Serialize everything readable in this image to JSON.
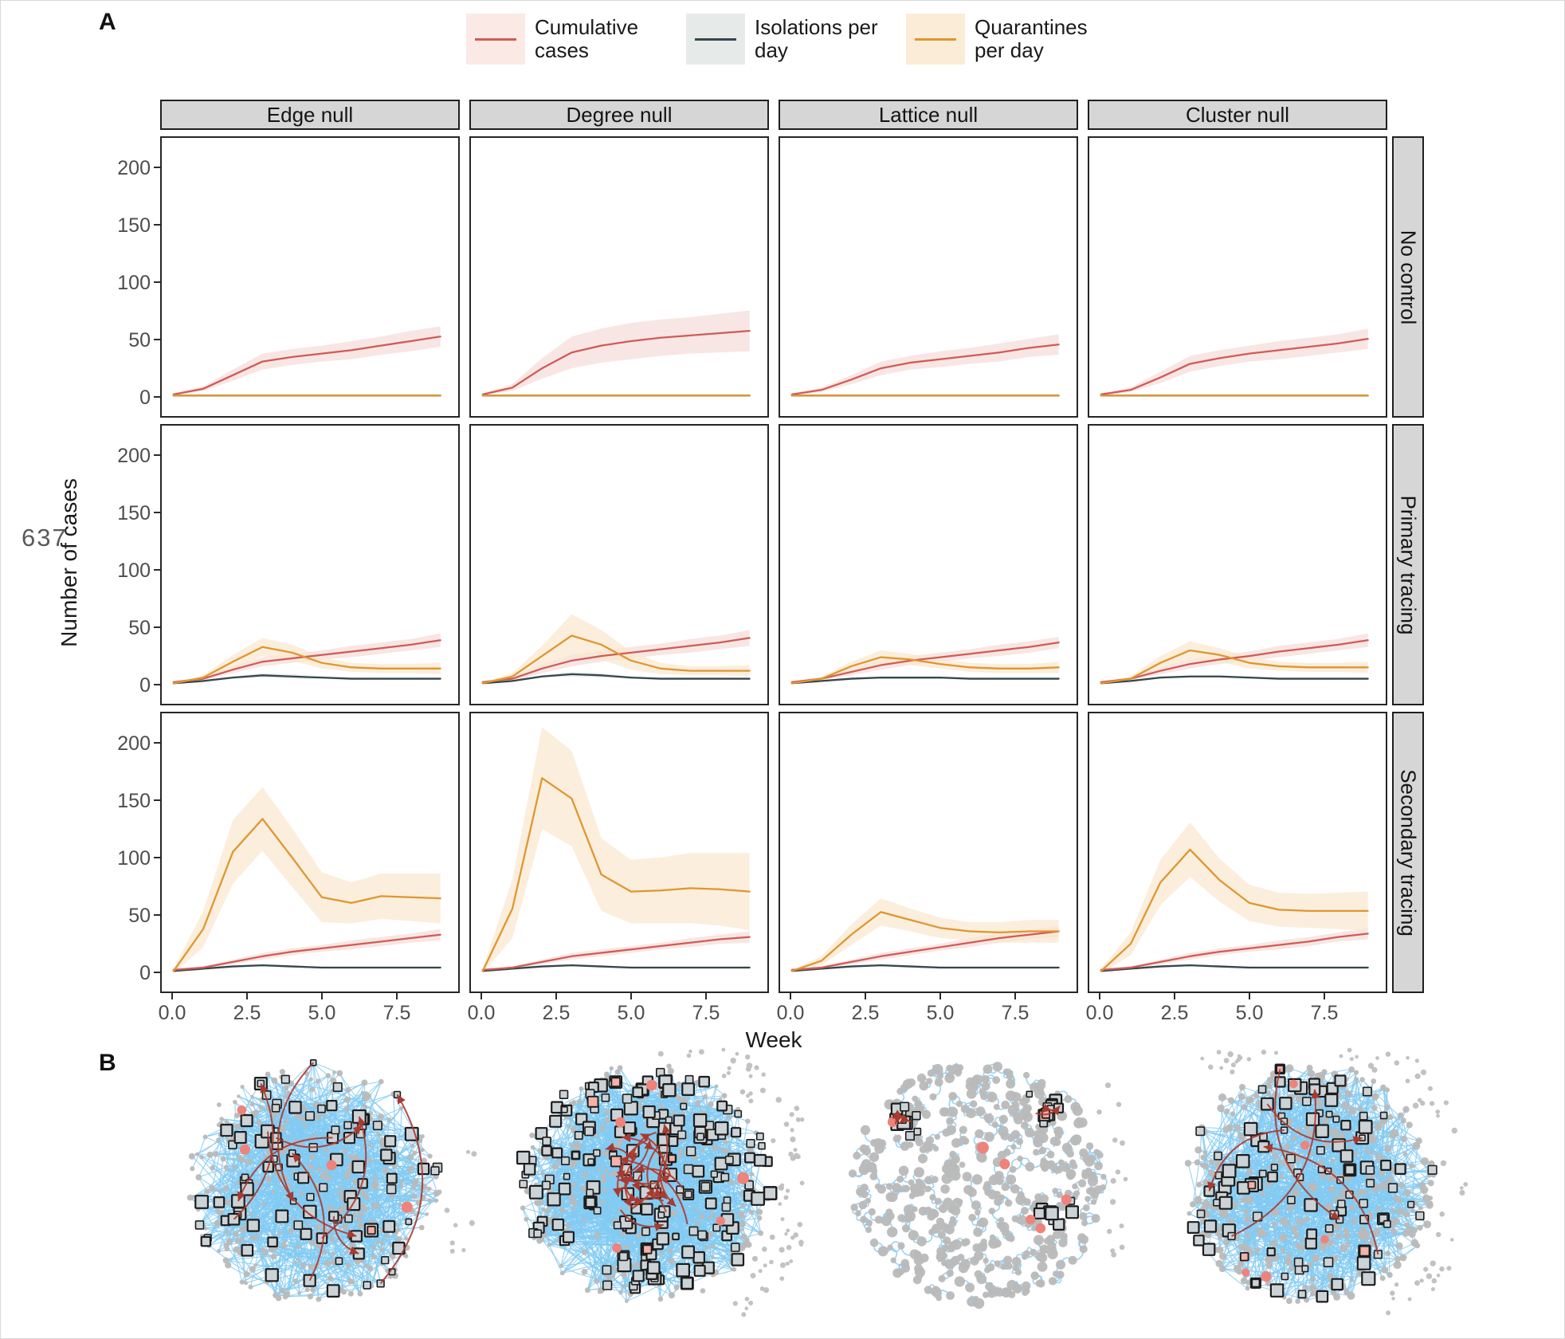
{
  "labels": {
    "panel_a": "A",
    "panel_b": "B",
    "line_number": "637"
  },
  "legend": {
    "items": [
      {
        "name": "cumulative-cases",
        "label": "Cumulative cases",
        "line_color": "#d15b55",
        "swatch_bg": "#fbe9e6"
      },
      {
        "name": "isolations-per-day",
        "label": "Isolations per day",
        "line_color": "#37474a",
        "swatch_bg": "#e6ebea"
      },
      {
        "name": "quarantines-per-day",
        "label": "Quarantines per day",
        "line_color": "#e0962f",
        "swatch_bg": "#fbecd7"
      }
    ]
  },
  "facets": {
    "columns": [
      "Edge null",
      "Degree null",
      "Lattice null",
      "Cluster null"
    ],
    "rows": [
      "No control",
      "Primary tracing",
      "Secondary tracing"
    ],
    "strip_bg": "#d6d6d6"
  },
  "axes": {
    "y_label": "Number of cases",
    "x_label": "Week",
    "y_ticks": [
      0,
      50,
      100,
      150,
      200
    ],
    "x_tick_values": [
      0,
      2.5,
      5,
      7.5
    ],
    "x_tick_labels": [
      "0.0",
      "2.5",
      "5.0",
      "7.5"
    ]
  },
  "chart_data": {
    "type": "line",
    "x_weeks": [
      0,
      1,
      2,
      3,
      4,
      5,
      6,
      7,
      8,
      9
    ],
    "ylim": [
      0,
      230
    ],
    "series_colors": {
      "cumulative": "#d15b55",
      "isolations": "#37474a",
      "quarantines": "#e0962f"
    },
    "ribbon_colors": {
      "cumulative": "#f5dcd9",
      "isolations": "#e2e8e8",
      "quarantines": "#fae7cf"
    },
    "panels": [
      {
        "row": "No control",
        "col": "Edge null",
        "cumulative": {
          "y": [
            1,
            6,
            18,
            30,
            34,
            37,
            40,
            44,
            48,
            52
          ],
          "band": [
            1,
            2,
            5,
            7,
            7,
            7,
            8,
            8,
            9,
            9
          ]
        },
        "isolations": {
          "y": [
            0,
            0,
            0,
            0,
            0,
            0,
            0,
            0,
            0,
            0
          ],
          "band": [
            0,
            0,
            0,
            0,
            0,
            0,
            0,
            0,
            0,
            0
          ]
        },
        "quarantines": {
          "y": [
            0,
            0,
            0,
            0,
            0,
            0,
            0,
            0,
            0,
            0
          ],
          "band": [
            1,
            1,
            1,
            1,
            1,
            1,
            1,
            1,
            1,
            1
          ]
        }
      },
      {
        "row": "No control",
        "col": "Degree null",
        "cumulative": {
          "y": [
            1,
            7,
            24,
            38,
            44,
            48,
            51,
            53,
            55,
            57
          ],
          "band": [
            1,
            3,
            9,
            14,
            15,
            16,
            16,
            16,
            17,
            18
          ]
        },
        "isolations": {
          "y": [
            0,
            0,
            0,
            0,
            0,
            0,
            0,
            0,
            0,
            0
          ],
          "band": [
            0,
            0,
            0,
            0,
            0,
            0,
            0,
            0,
            0,
            0
          ]
        },
        "quarantines": {
          "y": [
            0,
            0,
            0,
            0,
            0,
            0,
            0,
            0,
            0,
            0
          ],
          "band": [
            1,
            1,
            1,
            1,
            1,
            1,
            1,
            1,
            1,
            1
          ]
        }
      },
      {
        "row": "No control",
        "col": "Lattice null",
        "cumulative": {
          "y": [
            1,
            5,
            14,
            24,
            29,
            32,
            35,
            38,
            42,
            45
          ],
          "band": [
            1,
            2,
            4,
            6,
            6,
            7,
            7,
            8,
            8,
            9
          ]
        },
        "isolations": {
          "y": [
            0,
            0,
            0,
            0,
            0,
            0,
            0,
            0,
            0,
            0
          ],
          "band": [
            0,
            0,
            0,
            0,
            0,
            0,
            0,
            0,
            0,
            0
          ]
        },
        "quarantines": {
          "y": [
            0,
            0,
            0,
            0,
            0,
            0,
            0,
            0,
            0,
            0
          ],
          "band": [
            1,
            1,
            1,
            1,
            1,
            1,
            1,
            1,
            1,
            1
          ]
        }
      },
      {
        "row": "No control",
        "col": "Cluster null",
        "cumulative": {
          "y": [
            1,
            5,
            16,
            28,
            33,
            37,
            40,
            43,
            46,
            50
          ],
          "band": [
            1,
            2,
            5,
            7,
            7,
            7,
            8,
            8,
            8,
            9
          ]
        },
        "isolations": {
          "y": [
            0,
            0,
            0,
            0,
            0,
            0,
            0,
            0,
            0,
            0
          ],
          "band": [
            0,
            0,
            0,
            0,
            0,
            0,
            0,
            0,
            0,
            0
          ]
        },
        "quarantines": {
          "y": [
            0,
            0,
            0,
            0,
            0,
            0,
            0,
            0,
            0,
            0
          ],
          "band": [
            1,
            1,
            1,
            1,
            1,
            1,
            1,
            1,
            1,
            1
          ]
        }
      },
      {
        "row": "Primary tracing",
        "col": "Edge null",
        "cumulative": {
          "y": [
            1,
            4,
            12,
            19,
            22,
            25,
            28,
            31,
            34,
            38
          ],
          "band": [
            1,
            1,
            3,
            4,
            4,
            4,
            5,
            5,
            5,
            6
          ]
        },
        "isolations": {
          "y": [
            0,
            2,
            5,
            7,
            6,
            5,
            4,
            4,
            4,
            4
          ],
          "band": [
            0,
            1,
            1,
            2,
            2,
            1,
            1,
            1,
            1,
            1
          ]
        },
        "quarantines": {
          "y": [
            0,
            5,
            19,
            32,
            27,
            18,
            14,
            13,
            13,
            13
          ],
          "band": [
            1,
            2,
            6,
            8,
            7,
            5,
            4,
            4,
            4,
            5
          ]
        }
      },
      {
        "row": "Primary tracing",
        "col": "Degree null",
        "cumulative": {
          "y": [
            1,
            4,
            13,
            20,
            24,
            27,
            30,
            33,
            36,
            40
          ],
          "band": [
            1,
            2,
            4,
            5,
            5,
            5,
            5,
            6,
            6,
            7
          ]
        },
        "isolations": {
          "y": [
            0,
            2,
            6,
            8,
            7,
            5,
            4,
            4,
            4,
            4
          ],
          "band": [
            0,
            1,
            1,
            2,
            2,
            1,
            1,
            1,
            1,
            1
          ]
        },
        "quarantines": {
          "y": [
            0,
            6,
            24,
            42,
            34,
            20,
            13,
            11,
            11,
            11
          ],
          "band": [
            1,
            3,
            9,
            19,
            13,
            8,
            5,
            4,
            4,
            5
          ]
        }
      },
      {
        "row": "Primary tracing",
        "col": "Lattice null",
        "cumulative": {
          "y": [
            1,
            4,
            10,
            16,
            20,
            23,
            26,
            29,
            32,
            36
          ],
          "band": [
            1,
            1,
            3,
            4,
            4,
            4,
            4,
            5,
            5,
            5
          ]
        },
        "isolations": {
          "y": [
            0,
            2,
            4,
            5,
            5,
            5,
            4,
            4,
            4,
            4
          ],
          "band": [
            0,
            1,
            1,
            1,
            1,
            1,
            1,
            1,
            1,
            1
          ]
        },
        "quarantines": {
          "y": [
            0,
            4,
            15,
            23,
            21,
            17,
            14,
            13,
            13,
            14
          ],
          "band": [
            1,
            2,
            4,
            6,
            5,
            4,
            4,
            4,
            4,
            5
          ]
        }
      },
      {
        "row": "Primary tracing",
        "col": "Cluster null",
        "cumulative": {
          "y": [
            1,
            4,
            11,
            17,
            21,
            24,
            28,
            31,
            34,
            38
          ],
          "band": [
            1,
            1,
            3,
            4,
            4,
            4,
            5,
            5,
            5,
            6
          ]
        },
        "isolations": {
          "y": [
            0,
            2,
            5,
            6,
            6,
            5,
            4,
            4,
            4,
            4
          ],
          "band": [
            0,
            1,
            1,
            1,
            1,
            1,
            1,
            1,
            1,
            1
          ]
        },
        "quarantines": {
          "y": [
            0,
            4,
            18,
            29,
            25,
            18,
            15,
            14,
            14,
            14
          ],
          "band": [
            1,
            2,
            6,
            8,
            6,
            5,
            4,
            4,
            4,
            5
          ]
        }
      },
      {
        "row": "Secondary tracing",
        "col": "Edge null",
        "cumulative": {
          "y": [
            1,
            3,
            8,
            13,
            17,
            20,
            23,
            26,
            29,
            32
          ],
          "band": [
            1,
            1,
            2,
            3,
            3,
            3,
            4,
            4,
            4,
            5
          ]
        },
        "isolations": {
          "y": [
            0,
            2,
            4,
            5,
            4,
            3,
            3,
            3,
            3,
            3
          ],
          "band": [
            0,
            1,
            1,
            1,
            1,
            1,
            1,
            1,
            1,
            1
          ]
        },
        "quarantines": {
          "y": [
            0,
            37,
            105,
            134,
            100,
            65,
            60,
            66,
            65,
            64
          ],
          "band": [
            2,
            16,
            28,
            28,
            26,
            22,
            18,
            20,
            21,
            22
          ]
        }
      },
      {
        "row": "Secondary tracing",
        "col": "Degree null",
        "cumulative": {
          "y": [
            1,
            3,
            8,
            13,
            16,
            19,
            22,
            25,
            28,
            30
          ],
          "band": [
            1,
            1,
            2,
            3,
            3,
            3,
            3,
            4,
            4,
            5
          ]
        },
        "isolations": {
          "y": [
            0,
            2,
            4,
            5,
            4,
            3,
            3,
            3,
            3,
            3
          ],
          "band": [
            0,
            1,
            1,
            1,
            1,
            1,
            1,
            1,
            1,
            1
          ]
        },
        "quarantines": {
          "y": [
            0,
            55,
            170,
            152,
            85,
            70,
            71,
            73,
            72,
            70
          ],
          "band": [
            2,
            26,
            45,
            42,
            32,
            28,
            29,
            31,
            32,
            34
          ]
        }
      },
      {
        "row": "Secondary tracing",
        "col": "Lattice null",
        "cumulative": {
          "y": [
            1,
            3,
            8,
            13,
            17,
            21,
            25,
            29,
            32,
            35
          ],
          "band": [
            1,
            1,
            2,
            3,
            3,
            3,
            4,
            4,
            4,
            5
          ]
        },
        "isolations": {
          "y": [
            0,
            2,
            4,
            5,
            4,
            3,
            3,
            3,
            3,
            3
          ],
          "band": [
            0,
            1,
            1,
            1,
            1,
            1,
            1,
            1,
            1,
            1
          ]
        },
        "quarantines": {
          "y": [
            0,
            9,
            32,
            52,
            45,
            38,
            35,
            34,
            35,
            35
          ],
          "band": [
            1,
            4,
            9,
            12,
            10,
            9,
            8,
            9,
            10,
            10
          ]
        }
      },
      {
        "row": "Secondary tracing",
        "col": "Cluster null",
        "cumulative": {
          "y": [
            1,
            3,
            8,
            13,
            17,
            20,
            23,
            26,
            30,
            33
          ],
          "band": [
            1,
            1,
            2,
            3,
            3,
            3,
            4,
            4,
            4,
            5
          ]
        },
        "isolations": {
          "y": [
            0,
            2,
            4,
            5,
            4,
            3,
            3,
            3,
            3,
            3
          ],
          "band": [
            0,
            1,
            1,
            1,
            1,
            1,
            1,
            1,
            1,
            1
          ]
        },
        "quarantines": {
          "y": [
            0,
            24,
            78,
            107,
            80,
            60,
            54,
            53,
            53,
            53
          ],
          "band": [
            2,
            10,
            20,
            24,
            19,
            16,
            15,
            15,
            16,
            17
          ]
        }
      }
    ]
  },
  "networks": {
    "colors": {
      "node": "#b9b9b9",
      "edge": "#82cbf2",
      "square_fill": "#ccd3d6",
      "square_stroke": "#1c1c1c",
      "infected_dot": "#ee837c",
      "infected_square": "#f3b2aa",
      "arrow": "#a83a30",
      "halo_dot": "#c2c2c2"
    },
    "items": [
      {
        "name": "edge-null-network",
        "seed": 11,
        "nodes": 500,
        "node_radius": 3.2,
        "edge_count": 950,
        "edge_style": "random",
        "squares": 105,
        "square_mode": "spread",
        "red_dots": 4,
        "red_squares": 1,
        "arrows": 9,
        "arrow_reach": "long",
        "halo": {
          "count": 8,
          "from": -20,
          "to": 30
        }
      },
      {
        "name": "degree-null-network",
        "seed": 22,
        "nodes": 520,
        "node_radius": 3.2,
        "edge_count": 1250,
        "edge_style": "random",
        "squares": 215,
        "square_mode": "spread",
        "red_dots": 5,
        "red_squares": 6,
        "arrows": 22,
        "arrow_reach": "medium",
        "halo": {
          "count": 70,
          "from": -100,
          "to": 60
        }
      },
      {
        "name": "lattice-null-network",
        "seed": 33,
        "nodes": 480,
        "node_radius": 5.2,
        "edge_count": 620,
        "edge_style": "local",
        "squares": 34,
        "square_mode": "two-clusters",
        "red_dots": 6,
        "red_squares": 2,
        "arrows": 5,
        "arrow_reach": "short",
        "halo": {
          "count": 14,
          "from": -40,
          "to": 30
        }
      },
      {
        "name": "cluster-null-network",
        "seed": 44,
        "nodes": 500,
        "node_radius": 4.0,
        "edge_count": 1050,
        "edge_style": "random-local-mix",
        "squares": 120,
        "square_mode": "spread-left",
        "red_dots": 5,
        "red_squares": 4,
        "arrows": 5,
        "arrow_reach": "long",
        "halo": {
          "count": 60,
          "from": -130,
          "to": 60
        }
      }
    ]
  }
}
